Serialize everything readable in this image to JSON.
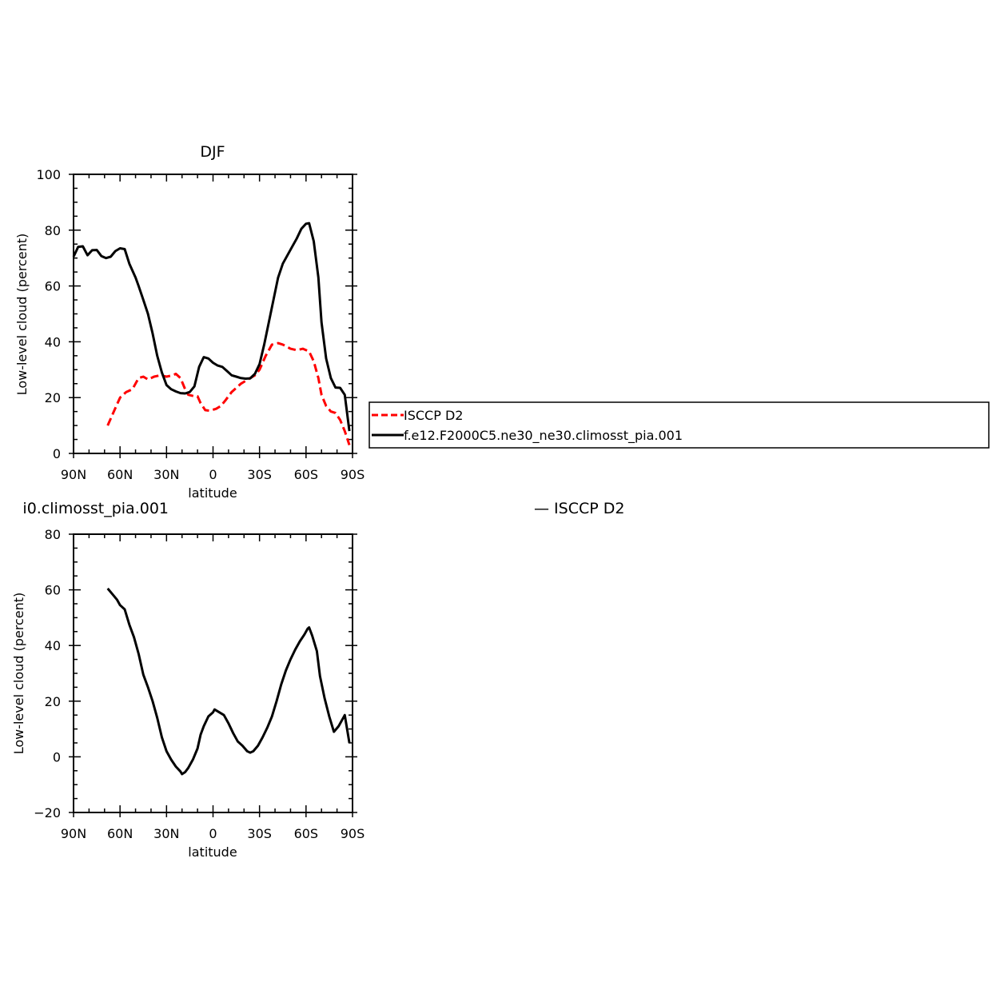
{
  "chart_data": [
    {
      "type": "line",
      "title": "DJF",
      "xlabel": "latitude",
      "ylabel": "Low-level cloud (percent)",
      "xlim": [
        -90,
        90
      ],
      "ylim": [
        0,
        100
      ],
      "x_ticks": [
        {
          "value": -90,
          "label": "90N"
        },
        {
          "value": -60,
          "label": "60N"
        },
        {
          "value": -30,
          "label": "30N"
        },
        {
          "value": 0,
          "label": "0"
        },
        {
          "value": 30,
          "label": "30S"
        },
        {
          "value": 60,
          "label": "60S"
        },
        {
          "value": 90,
          "label": "90S"
        }
      ],
      "y_ticks": [
        0,
        20,
        40,
        60,
        80,
        100
      ],
      "legend": "right",
      "series": [
        {
          "name": "ISCCP D2",
          "color": "#ff0000",
          "dash": "dashed",
          "points": [
            [
              -68,
              10
            ],
            [
              -64,
              15
            ],
            [
              -60,
              20
            ],
            [
              -56,
              22
            ],
            [
              -52,
              23
            ],
            [
              -48,
              27
            ],
            [
              -45,
              27.5
            ],
            [
              -42,
              26.5
            ],
            [
              -38,
              27.5
            ],
            [
              -34,
              28
            ],
            [
              -30,
              27.5
            ],
            [
              -26,
              28
            ],
            [
              -24,
              28.5
            ],
            [
              -21,
              27
            ],
            [
              -18,
              23
            ],
            [
              -16,
              21
            ],
            [
              -12,
              20.5
            ],
            [
              -10,
              20.5
            ],
            [
              -8,
              18
            ],
            [
              -5,
              15.5
            ],
            [
              -2,
              15.3
            ],
            [
              2,
              16
            ],
            [
              5,
              17
            ],
            [
              8,
              19
            ],
            [
              12,
              22
            ],
            [
              15,
              23.5
            ],
            [
              18,
              25
            ],
            [
              21,
              26
            ],
            [
              24,
              27
            ],
            [
              27,
              28
            ],
            [
              30,
              30
            ],
            [
              34,
              35
            ],
            [
              38,
              39
            ],
            [
              42,
              39.5
            ],
            [
              45,
              39
            ],
            [
              50,
              37.5
            ],
            [
              54,
              37
            ],
            [
              58,
              37.5
            ],
            [
              62,
              36.5
            ],
            [
              65,
              33
            ],
            [
              68,
              27
            ],
            [
              70,
              21
            ],
            [
              73,
              17
            ],
            [
              76,
              15
            ],
            [
              79,
              14.5
            ],
            [
              82,
              12
            ],
            [
              85,
              8
            ],
            [
              88,
              3
            ]
          ]
        },
        {
          "name": "f.e12.F2000C5.ne30_ne30.climosst_pia.001",
          "color": "#000000",
          "dash": "solid",
          "points": [
            [
              -90,
              70.5
            ],
            [
              -87,
              74
            ],
            [
              -84,
              74.2
            ],
            [
              -81,
              71
            ],
            [
              -78,
              72.8
            ],
            [
              -75,
              72.9
            ],
            [
              -72,
              70.7
            ],
            [
              -69,
              70
            ],
            [
              -66,
              70.5
            ],
            [
              -63,
              72.5
            ],
            [
              -60,
              73.5
            ],
            [
              -57,
              73.2
            ],
            [
              -54,
              68
            ],
            [
              -50,
              63
            ],
            [
              -48,
              60
            ],
            [
              -45,
              55
            ],
            [
              -42,
              50
            ],
            [
              -39,
              43
            ],
            [
              -36,
              35
            ],
            [
              -33,
              29
            ],
            [
              -30,
              24.5
            ],
            [
              -27,
              23
            ],
            [
              -24,
              22.2
            ],
            [
              -21,
              21.6
            ],
            [
              -18,
              21.5
            ],
            [
              -15,
              22
            ],
            [
              -12,
              24
            ],
            [
              -9,
              31
            ],
            [
              -6,
              34.5
            ],
            [
              -3,
              34
            ],
            [
              0,
              32.5
            ],
            [
              3,
              31.5
            ],
            [
              6,
              31
            ],
            [
              9,
              29.5
            ],
            [
              12,
              28
            ],
            [
              15,
              27.5
            ],
            [
              18,
              27
            ],
            [
              21,
              26.8
            ],
            [
              24,
              26.9
            ],
            [
              27,
              28.5
            ],
            [
              30,
              32
            ],
            [
              33,
              39
            ],
            [
              36,
              47
            ],
            [
              39,
              55
            ],
            [
              42,
              63
            ],
            [
              45,
              68
            ],
            [
              48,
              71
            ],
            [
              51,
              74
            ],
            [
              54,
              77
            ],
            [
              57,
              80.5
            ],
            [
              60,
              82.3
            ],
            [
              62,
              82.5
            ],
            [
              65,
              76
            ],
            [
              68,
              63
            ],
            [
              70,
              47
            ],
            [
              73,
              34
            ],
            [
              76,
              27
            ],
            [
              79,
              23.6
            ],
            [
              82,
              23.5
            ],
            [
              85,
              21
            ],
            [
              88,
              8
            ]
          ]
        }
      ]
    },
    {
      "type": "line",
      "title": "",
      "title_partial": "i0.climosst_pia.001",
      "legend_partial": "— ISCCP D2",
      "xlabel": "latitude",
      "ylabel": "Low-level cloud (percent)",
      "xlim": [
        -90,
        90
      ],
      "ylim": [
        -20,
        80
      ],
      "x_ticks": [
        {
          "value": -90,
          "label": "90N"
        },
        {
          "value": -60,
          "label": "60N"
        },
        {
          "value": -30,
          "label": "30N"
        },
        {
          "value": 0,
          "label": "0"
        },
        {
          "value": 30,
          "label": "30S"
        },
        {
          "value": 60,
          "label": "60S"
        },
        {
          "value": 90,
          "label": "90S"
        }
      ],
      "y_ticks": [
        -20,
        0,
        20,
        40,
        60,
        80
      ],
      "series": [
        {
          "name": "",
          "color": "#000000",
          "dash": "solid",
          "points": [
            [
              -68,
              60.5
            ],
            [
              -65,
              58.5
            ],
            [
              -62,
              56.5
            ],
            [
              -60,
              54.5
            ],
            [
              -57,
              53
            ],
            [
              -54,
              47.5
            ],
            [
              -51,
              43
            ],
            [
              -48,
              37
            ],
            [
              -45,
              29.5
            ],
            [
              -42,
              25
            ],
            [
              -39,
              20
            ],
            [
              -36,
              14
            ],
            [
              -33,
              7
            ],
            [
              -30,
              2
            ],
            [
              -27,
              -1
            ],
            [
              -24,
              -3.5
            ],
            [
              -21,
              -5.3
            ],
            [
              -20,
              -6.2
            ],
            [
              -18,
              -5.5
            ],
            [
              -16,
              -4
            ],
            [
              -13,
              -1
            ],
            [
              -10,
              3
            ],
            [
              -8,
              8
            ],
            [
              -6,
              11
            ],
            [
              -3,
              14.5
            ],
            [
              0,
              16
            ],
            [
              1,
              17
            ],
            [
              4,
              16
            ],
            [
              7,
              15
            ],
            [
              10,
              12
            ],
            [
              13,
              8.5
            ],
            [
              16,
              5.5
            ],
            [
              19,
              4
            ],
            [
              22,
              2
            ],
            [
              24,
              1.5
            ],
            [
              26,
              2
            ],
            [
              29,
              4
            ],
            [
              32,
              7
            ],
            [
              35,
              10.5
            ],
            [
              38,
              14.5
            ],
            [
              41,
              20
            ],
            [
              44,
              26
            ],
            [
              47,
              31
            ],
            [
              50,
              35
            ],
            [
              53,
              38.5
            ],
            [
              56,
              41.5
            ],
            [
              59,
              44
            ],
            [
              61,
              46
            ],
            [
              62,
              46.5
            ],
            [
              64,
              43.5
            ],
            [
              67,
              38
            ],
            [
              69,
              29
            ],
            [
              72,
              21
            ],
            [
              75,
              14.5
            ],
            [
              78,
              9
            ],
            [
              81,
              11
            ],
            [
              84,
              14
            ],
            [
              85,
              15
            ],
            [
              88,
              5
            ]
          ]
        }
      ]
    }
  ]
}
